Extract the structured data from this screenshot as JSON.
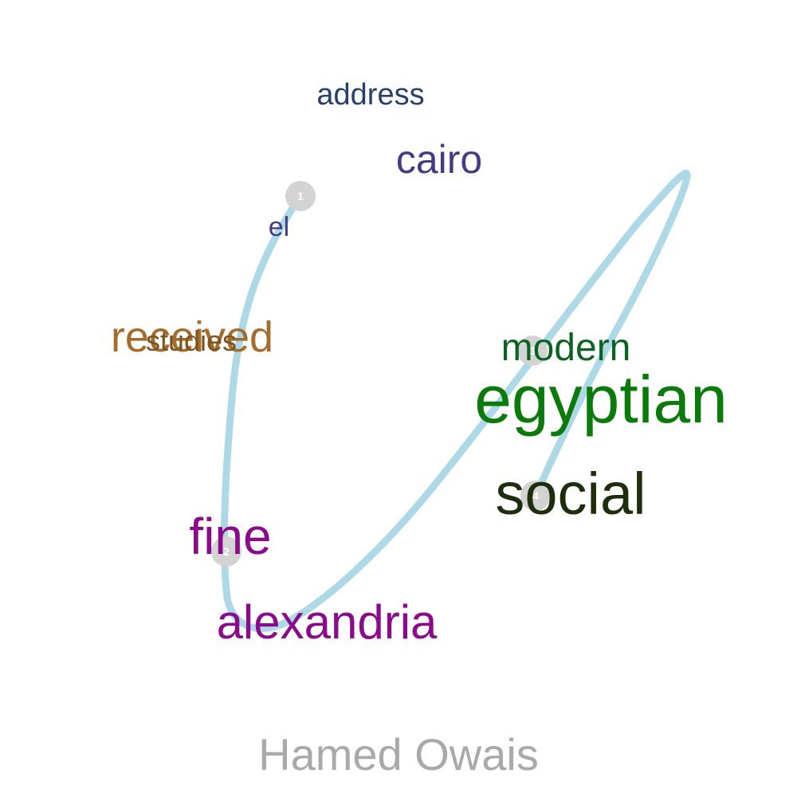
{
  "title": "",
  "author": "Hamed Owais",
  "colors": {
    "path": "#ADD8E6",
    "marker": "#D3D3D3",
    "marker_text": "#FFFFFF",
    "author": "#A9A9A9"
  },
  "markers": [
    {
      "label": "1"
    },
    {
      "label": "2"
    },
    {
      "label": "3"
    },
    {
      "label": "4"
    }
  ],
  "words": [
    {
      "text": "address",
      "color": "#27406B"
    },
    {
      "text": "cairo",
      "color": "#453A85"
    },
    {
      "text": "el",
      "color": "#453A85"
    },
    {
      "text": "received",
      "color": "#A66C2C"
    },
    {
      "text": "studies",
      "color": "#7A5520"
    },
    {
      "text": "modern",
      "color": "#0B6323"
    },
    {
      "text": "egyptian",
      "color": "#0A7A0A"
    },
    {
      "text": "social",
      "color": "#1C2E0B"
    },
    {
      "text": "fine",
      "color": "#8B0A8B"
    },
    {
      "text": "alexandria",
      "color": "#8B0A8B"
    }
  ]
}
